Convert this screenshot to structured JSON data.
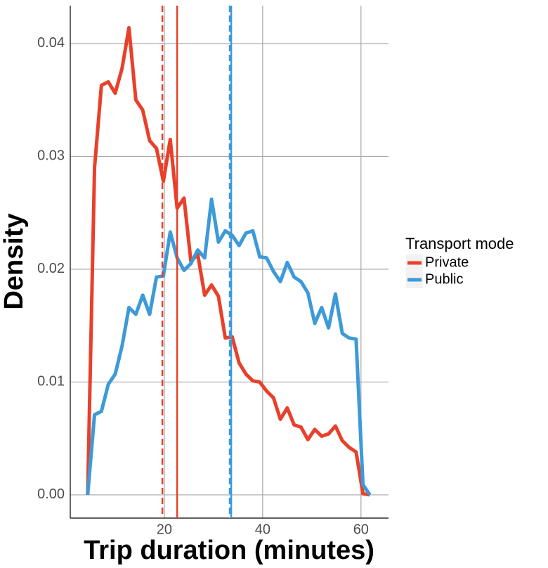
{
  "chart_data": {
    "type": "line",
    "x_label": "Trip duration (minutes)",
    "y_label": "Density",
    "legend_title": "Transport mode",
    "legend": "right",
    "grid": true,
    "xlim": [
      0.86,
      65.6
    ],
    "ylim": [
      -0.00206,
      0.04336
    ],
    "xticks": [
      20,
      40,
      60
    ],
    "yticks": [
      {
        "value": 0,
        "label": "0.00"
      },
      0.01,
      0.02,
      0.03,
      0.04
    ],
    "x": [
      4.4,
      5.8,
      7.2,
      8.6,
      10.0,
      11.4,
      12.8,
      14.2,
      15.6,
      17.0,
      18.4,
      19.8,
      21.2,
      22.6,
      24.0,
      25.4,
      26.8,
      28.2,
      29.6,
      31.0,
      32.4,
      33.8,
      35.2,
      36.6,
      38.0,
      39.4,
      40.8,
      42.2,
      43.6,
      45.0,
      46.4,
      47.8,
      49.2,
      50.6,
      52.0,
      53.4,
      54.8,
      56.2,
      57.6,
      59.0,
      60.4,
      61.8
    ],
    "series": [
      {
        "name": "Private",
        "color": "#e8402a",
        "values": [
          0,
          0.029,
          0.0363,
          0.0366,
          0.0356,
          0.0378,
          0.0414,
          0.035,
          0.0341,
          0.0314,
          0.0307,
          0.0278,
          0.0315,
          0.0254,
          0.0263,
          0.0207,
          0.0213,
          0.0177,
          0.0186,
          0.0176,
          0.0139,
          0.014,
          0.0117,
          0.0107,
          0.0101,
          0.01,
          0.0092,
          0.0086,
          0.0067,
          0.0077,
          0.0062,
          0.006,
          0.0049,
          0.0058,
          0.0052,
          0.0054,
          0.0061,
          0.0048,
          0.0042,
          0.0038,
          0.0001,
          0
        ]
      },
      {
        "name": "Public",
        "color": "#3d9ad8",
        "values": [
          0,
          0.0071,
          0.0074,
          0.0098,
          0.0107,
          0.0132,
          0.0166,
          0.016,
          0.0177,
          0.016,
          0.0193,
          0.0194,
          0.0233,
          0.021,
          0.0199,
          0.0205,
          0.0217,
          0.021,
          0.0262,
          0.0224,
          0.0234,
          0.023,
          0.0221,
          0.0232,
          0.0234,
          0.0211,
          0.021,
          0.0198,
          0.0189,
          0.0206,
          0.0193,
          0.0189,
          0.0179,
          0.0152,
          0.0166,
          0.0148,
          0.0178,
          0.0143,
          0.0139,
          0.0138,
          0.0009,
          0
        ]
      }
    ],
    "reference_lines": [
      {
        "x": 19.6,
        "color": "#e8402a",
        "dashed": true
      },
      {
        "x": 22.6,
        "color": "#e8402a",
        "dashed": false
      },
      {
        "x": 33.3,
        "color": "#3d9ad8",
        "dashed": true
      },
      {
        "x": 33.6,
        "color": "#3d9ad8",
        "dashed": false
      }
    ]
  }
}
